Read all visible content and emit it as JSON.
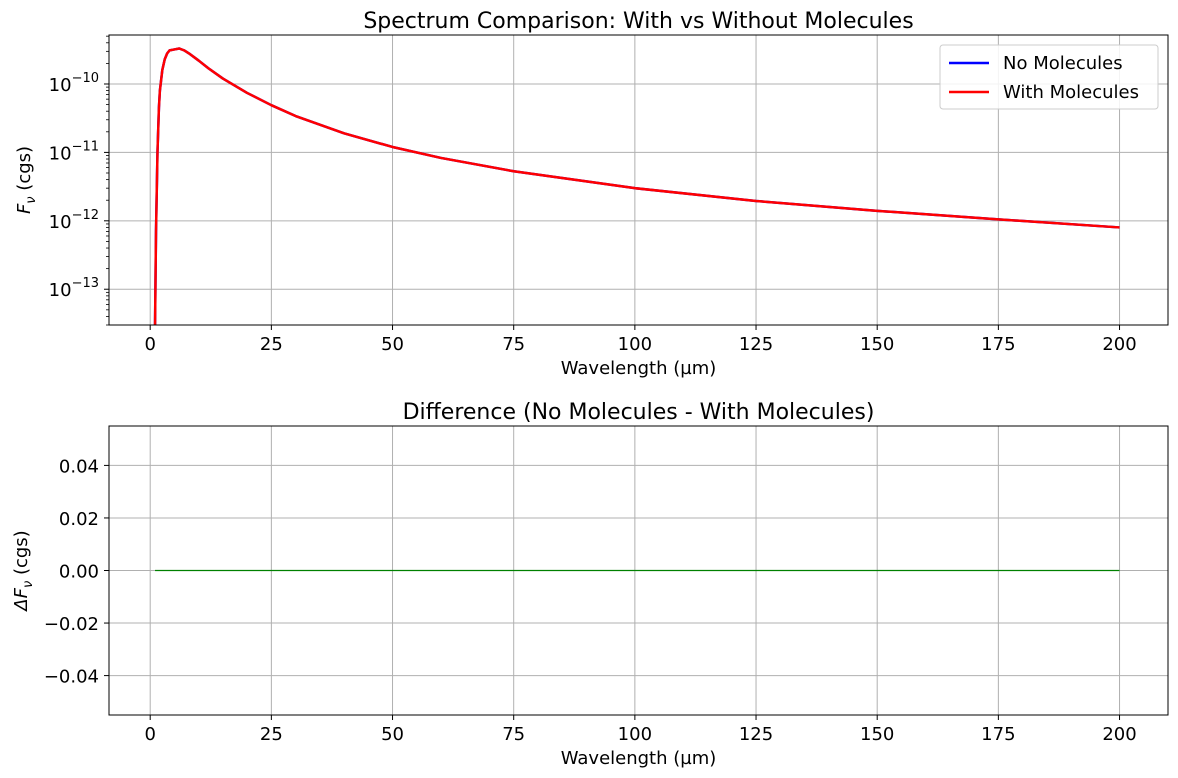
{
  "chart_data": [
    {
      "type": "line",
      "title": "Spectrum Comparison: With vs Without Molecules",
      "xlabel": "Wavelength (µm)",
      "ylabel_base": "F",
      "ylabel_sub": "ν",
      "ylabel_unit": " (cgs)",
      "yscale": "log",
      "xlim": [
        -8.5,
        210
      ],
      "ylim": [
        3e-14,
        5.2e-10
      ],
      "xticks": [
        0,
        25,
        50,
        75,
        100,
        125,
        150,
        175,
        200
      ],
      "yticks": [
        {
          "base": "10",
          "exp": "−10",
          "value": 1e-10
        },
        {
          "base": "10",
          "exp": "−11",
          "value": 1e-11
        },
        {
          "base": "10",
          "exp": "−12",
          "value": 1e-12
        },
        {
          "base": "10",
          "exp": "−13",
          "value": 1e-13
        }
      ],
      "legend_position": "top-right",
      "series": [
        {
          "name": "No Molecules",
          "color": "#0000ff",
          "x": [
            1.0,
            1.2,
            1.5,
            1.8,
            2.0,
            2.5,
            3.0,
            3.5,
            4.0,
            5.0,
            6.0,
            7.0,
            8.0,
            10.0,
            12.0,
            15.0,
            20.0,
            25.0,
            30.0,
            40.0,
            50.0,
            60.0,
            75.0,
            100.0,
            125.0,
            150.0,
            175.0,
            200.0
          ],
          "y": [
            3e-14,
            7e-13,
            1e-11,
            4.5e-11,
            8e-11,
            1.6e-10,
            2.3e-10,
            2.8e-10,
            3.1e-10,
            3.2e-10,
            3.3e-10,
            3.1e-10,
            2.8e-10,
            2.2e-10,
            1.7e-10,
            1.2e-10,
            7.4e-11,
            4.9e-11,
            3.4e-11,
            1.9e-11,
            1.2e-11,
            8.3e-12,
            5.3e-12,
            3e-12,
            1.95e-12,
            1.4e-12,
            1.05e-12,
            8e-13
          ]
        },
        {
          "name": "With Molecules",
          "color": "#ff0000",
          "x": [
            1.0,
            1.2,
            1.5,
            1.8,
            2.0,
            2.5,
            3.0,
            3.5,
            4.0,
            5.0,
            6.0,
            7.0,
            8.0,
            10.0,
            12.0,
            15.0,
            20.0,
            25.0,
            30.0,
            40.0,
            50.0,
            60.0,
            75.0,
            100.0,
            125.0,
            150.0,
            175.0,
            200.0
          ],
          "y": [
            3e-14,
            7e-13,
            1e-11,
            4.5e-11,
            8e-11,
            1.6e-10,
            2.3e-10,
            2.8e-10,
            3.1e-10,
            3.2e-10,
            3.3e-10,
            3.1e-10,
            2.8e-10,
            2.2e-10,
            1.7e-10,
            1.2e-10,
            7.4e-11,
            4.9e-11,
            3.4e-11,
            1.9e-11,
            1.2e-11,
            8.3e-12,
            5.3e-12,
            3e-12,
            1.95e-12,
            1.4e-12,
            1.05e-12,
            8e-13
          ]
        }
      ]
    },
    {
      "type": "line",
      "title": "Difference (No Molecules - With Molecules)",
      "xlabel": "Wavelength (µm)",
      "ylabel_base": "ΔF",
      "ylabel_sub": "ν",
      "ylabel_unit": " (cgs)",
      "yscale": "linear",
      "xlim": [
        -8.5,
        210
      ],
      "ylim": [
        -0.055,
        0.055
      ],
      "xticks": [
        0,
        25,
        50,
        75,
        100,
        125,
        150,
        175,
        200
      ],
      "yticks": [
        {
          "label": "0.04",
          "value": 0.04
        },
        {
          "label": "0.02",
          "value": 0.02
        },
        {
          "label": "0.00",
          "value": 0.0
        },
        {
          "label": "−0.02",
          "value": -0.02
        },
        {
          "label": "−0.04",
          "value": -0.04
        }
      ],
      "series": [
        {
          "name": "Difference",
          "color": "#008000",
          "x": [
            1.0,
            200.0
          ],
          "y": [
            0.0,
            0.0
          ]
        }
      ]
    }
  ]
}
